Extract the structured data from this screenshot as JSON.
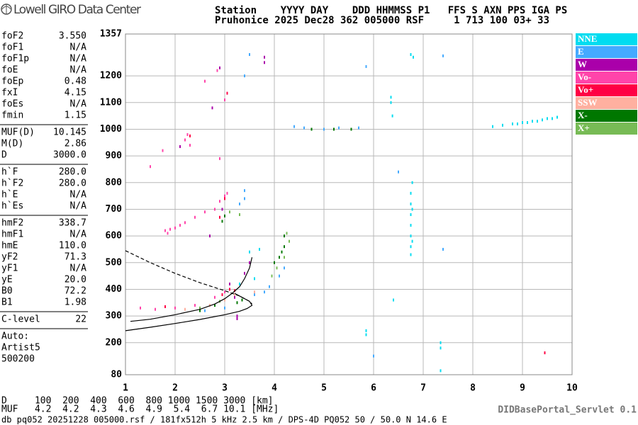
{
  "header": {
    "logo": "Lowell GIRO Data Center",
    "lines": [
      "Station    YYYY DAY    DDD HHMMSS P1   FFS S AXN PPS IGA PS",
      "Pruhonice 2025 Dec28 362 005000 RSF     1 713 100 03+ 33"
    ]
  },
  "parameters": [
    [
      [
        "foF2",
        "3.550"
      ],
      [
        "foF1",
        "N/A"
      ],
      [
        "foF1p",
        "N/A"
      ],
      [
        "foE",
        "N/A"
      ],
      [
        "foEp",
        "0.48"
      ],
      [
        "fxI",
        "4.15"
      ],
      [
        "foEs",
        "N/A"
      ],
      [
        "fmin",
        "1.15"
      ]
    ],
    [
      [
        "MUF(D)",
        "10.145"
      ],
      [
        "M(D)",
        "2.86"
      ],
      [
        "D",
        "3000.0"
      ]
    ],
    [
      [
        "h`F",
        "280.0"
      ],
      [
        "h`F2",
        "280.0"
      ],
      [
        "h`E",
        "N/A"
      ],
      [
        "h`Es",
        "N/A"
      ]
    ],
    [
      [
        "hmF2",
        "338.7"
      ],
      [
        "hmF1",
        "N/A"
      ],
      [
        "hmE",
        "110.0"
      ],
      [
        "yF2",
        "71.3"
      ],
      [
        "yF1",
        "N/A"
      ],
      [
        "yE",
        "20.0"
      ],
      [
        "B0",
        "72.2"
      ],
      [
        "B1",
        "1.98"
      ]
    ],
    [
      [
        "C-level",
        "22"
      ]
    ]
  ],
  "auto": [
    "Auto:",
    "Artist5",
    "500200"
  ],
  "footer": {
    "d_row": "D     100  200  400  600  800 1000 1500 3000 [km]",
    "muf_row": "MUF   4.2  4.2  4.3  4.6  4.9  5.4  6.7 10.1 [MHz]",
    "source": "db pq052 20251228 005000.rsf / 181fx512h 5 kHz 2.5 km / DPS-4D PQ052 50 / 50.0 N 14.6 E",
    "servlet": "DIDBasePortal_Servlet 0.1"
  },
  "chart_data": {
    "type": "scatter",
    "grid": true,
    "xlim": [
      1,
      10
    ],
    "xticks": [
      1,
      2,
      3,
      4,
      5,
      6,
      7,
      8,
      9,
      10
    ],
    "ylim": [
      80,
      1357
    ],
    "yticks": [
      80,
      200,
      300,
      400,
      500,
      600,
      700,
      800,
      900,
      1000,
      1100,
      1200,
      1357
    ],
    "series": [
      {
        "name": "NNE",
        "color": "#00dcf0",
        "x": [
          6.35,
          6.35,
          6.38,
          6.75,
          6.75,
          6.75,
          6.75,
          6.75,
          6.75,
          6.75,
          6.78,
          6.78,
          6.78,
          6.75,
          6.8,
          8.4,
          8.6,
          8.8,
          8.9,
          9.0,
          9.1,
          9.2,
          9.3,
          9.4,
          9.5,
          9.6,
          9.7,
          7.35,
          7.35,
          7.35,
          5.85,
          5.85,
          6.4,
          3.7,
          3.6,
          3.3,
          3.5
        ],
        "values": [
          1120,
          1100,
          1050,
          760,
          720,
          680,
          640,
          600,
          560,
          530,
          800,
          700,
          580,
          1280,
          1270,
          1010,
          1015,
          1020,
          1020,
          1025,
          1025,
          1030,
          1030,
          1035,
          1040,
          1040,
          1045,
          200,
          180,
          95,
          245,
          230,
          360,
          550,
          440,
          420,
          540
        ]
      },
      {
        "name": "E",
        "color": "#44aaff",
        "x": [
          3.5,
          3.4,
          3.4,
          3.4,
          3.3,
          3.8,
          3.9,
          4.1,
          4.2,
          3.6,
          3.0,
          2.6,
          6.5,
          5.85,
          4.4,
          4.6,
          5.0,
          5.3,
          5.7,
          6.0,
          7.4,
          7.4
        ],
        "values": [
          1280,
          1200,
          770,
          740,
          720,
          390,
          410,
          450,
          480,
          380,
          330,
          320,
          840,
          1235,
          1010,
          1005,
          1000,
          1005,
          1005,
          150,
          550,
          1275
        ]
      },
      {
        "name": "W",
        "color": "#aa00aa",
        "x": [
          2.1,
          2.75,
          2.9,
          2.7,
          2.95,
          3.1,
          3.4,
          3.5,
          3.2,
          3.8,
          3.8,
          3.25,
          3.25
        ],
        "values": [
          935,
          1080,
          1230,
          600,
          700,
          420,
          460,
          500,
          370,
          1250,
          1270,
          300,
          290
        ]
      },
      {
        "name": "Vo-",
        "color": "#ff44aa",
        "x": [
          1.8,
          1.9,
          2.0,
          2.1,
          2.2,
          2.4,
          2.6,
          2.8,
          2.9,
          3.0,
          3.05,
          1.85,
          2.3,
          2.2,
          2.25,
          1.5,
          1.75,
          2.9,
          3.0,
          2.6,
          2.85,
          1.3,
          1.6,
          2.0,
          2.4,
          2.8,
          3.0,
          3.1
        ],
        "values": [
          620,
          625,
          630,
          640,
          650,
          670,
          690,
          700,
          730,
          750,
          760,
          610,
          940,
          960,
          980,
          860,
          920,
          890,
          1110,
          1180,
          1220,
          330,
          325,
          330,
          340,
          370,
          390,
          400
        ]
      },
      {
        "name": "Vo+",
        "color": "#ff0044",
        "x": [
          2.3,
          3.05,
          2.9,
          3.0,
          3.1,
          2.95,
          3.2,
          9.45,
          1.8
        ],
        "values": [
          975,
          1135,
          670,
          740,
          400,
          380,
          395,
          162,
          335
        ]
      },
      {
        "name": "SSW",
        "color": "#ffb0a0",
        "x": [
          3.6,
          2.5,
          2.7,
          3.0,
          3.2,
          2.2
        ],
        "values": [
          390,
          330,
          340,
          360,
          380,
          325
        ]
      },
      {
        "name": "X-",
        "color": "#007700",
        "x": [
          2.95,
          3.0,
          4.15,
          4.2,
          4.0,
          4.1,
          4.2,
          3.25,
          3.35,
          2.8,
          2.5,
          4.75,
          5.2,
          5.55
        ],
        "values": [
          655,
          675,
          540,
          560,
          500,
          520,
          600,
          350,
          360,
          340,
          320,
          1000,
          1000,
          1000
        ]
      },
      {
        "name": "X+",
        "color": "#77bb55",
        "x": [
          4.25,
          4.3,
          4.2,
          4.05,
          3.95,
          3.3,
          3.1,
          2.9,
          2.5
        ],
        "values": [
          610,
          580,
          520,
          480,
          450,
          680,
          690,
          355,
          330
        ]
      }
    ],
    "curves": [
      {
        "style": "solid",
        "x": [
          1.1,
          1.5,
          2.0,
          2.5,
          2.8,
          3.0,
          3.15,
          3.3,
          3.4,
          3.5,
          3.55
        ],
        "values": [
          280,
          288,
          305,
          325,
          345,
          365,
          385,
          410,
          440,
          480,
          520
        ]
      },
      {
        "style": "solid",
        "x": [
          1.0,
          1.5,
          2.0,
          2.5,
          3.0,
          3.3,
          3.45,
          3.55,
          3.5,
          3.35,
          3.2
        ],
        "values": [
          245,
          258,
          272,
          287,
          305,
          318,
          328,
          340,
          355,
          370,
          385
        ]
      },
      {
        "style": "dashed",
        "x": [
          1.0,
          1.5,
          2.0,
          2.5,
          3.0,
          3.3,
          3.5,
          3.55
        ],
        "values": [
          545,
          500,
          460,
          425,
          395,
          375,
          355,
          345
        ]
      }
    ]
  }
}
